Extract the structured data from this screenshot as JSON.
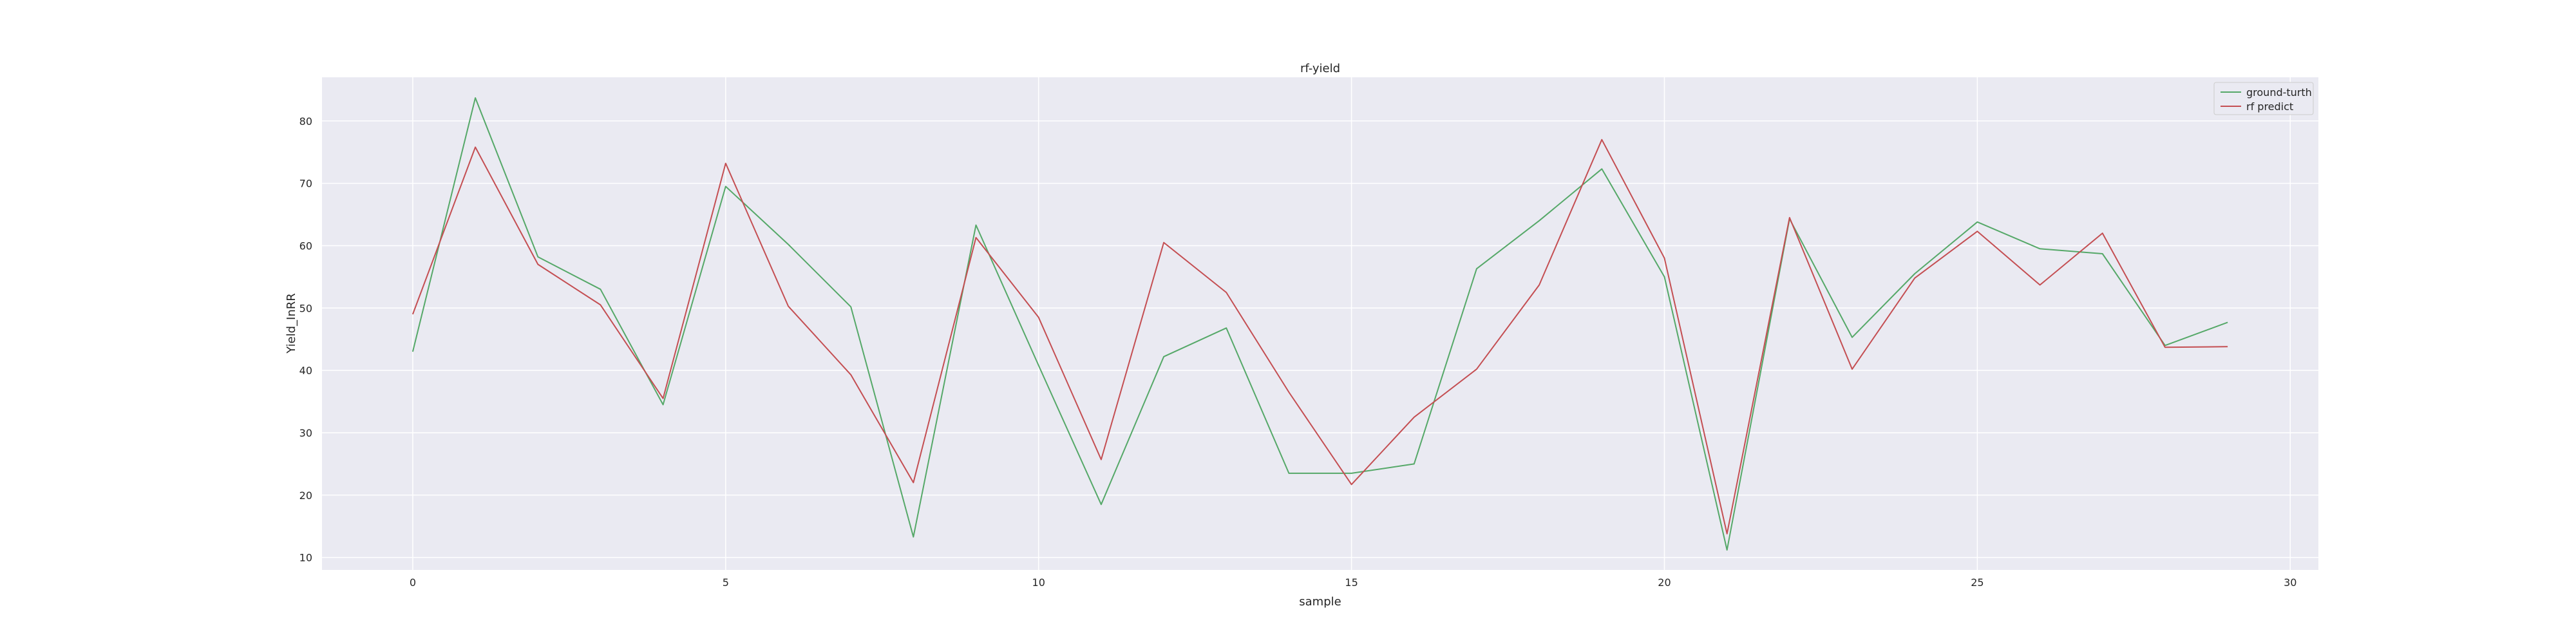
{
  "chart_data": {
    "type": "line",
    "title": "rf-yield",
    "xlabel": "sample",
    "ylabel": "Yield_InRR",
    "xlim": [
      -1.45,
      30.45
    ],
    "ylim": [
      8,
      87
    ],
    "xticks": [
      0,
      5,
      10,
      15,
      20,
      25,
      30
    ],
    "yticks": [
      10,
      20,
      30,
      40,
      50,
      60,
      70,
      80
    ],
    "grid": true,
    "legend_position": "top-right",
    "x": [
      0,
      1,
      2,
      3,
      4,
      5,
      6,
      7,
      8,
      9,
      10,
      11,
      12,
      13,
      14,
      15,
      16,
      17,
      18,
      19,
      20,
      21,
      22,
      23,
      24,
      25,
      26,
      27,
      28,
      29
    ],
    "series": [
      {
        "name": "ground-turth",
        "color": "#55a868",
        "values": [
          43.0,
          83.7,
          58.2,
          53.0,
          34.5,
          69.5,
          60.2,
          50.2,
          13.3,
          63.3,
          40.8,
          18.5,
          42.2,
          46.8,
          23.5,
          23.5,
          25.0,
          56.3,
          64.0,
          72.3,
          55.0,
          11.2,
          64.3,
          45.3,
          55.5,
          63.8,
          59.5,
          58.7,
          44.0,
          47.7
        ]
      },
      {
        "name": "rf predict",
        "color": "#c44e52",
        "values": [
          49.0,
          75.8,
          57.0,
          50.5,
          35.5,
          73.2,
          50.3,
          39.3,
          22.0,
          61.3,
          48.5,
          25.7,
          60.5,
          52.5,
          36.5,
          21.7,
          32.5,
          40.2,
          53.7,
          77.0,
          58.0,
          13.8,
          64.5,
          40.2,
          54.8,
          62.3,
          53.7,
          62.0,
          43.7,
          43.8
        ]
      }
    ]
  }
}
